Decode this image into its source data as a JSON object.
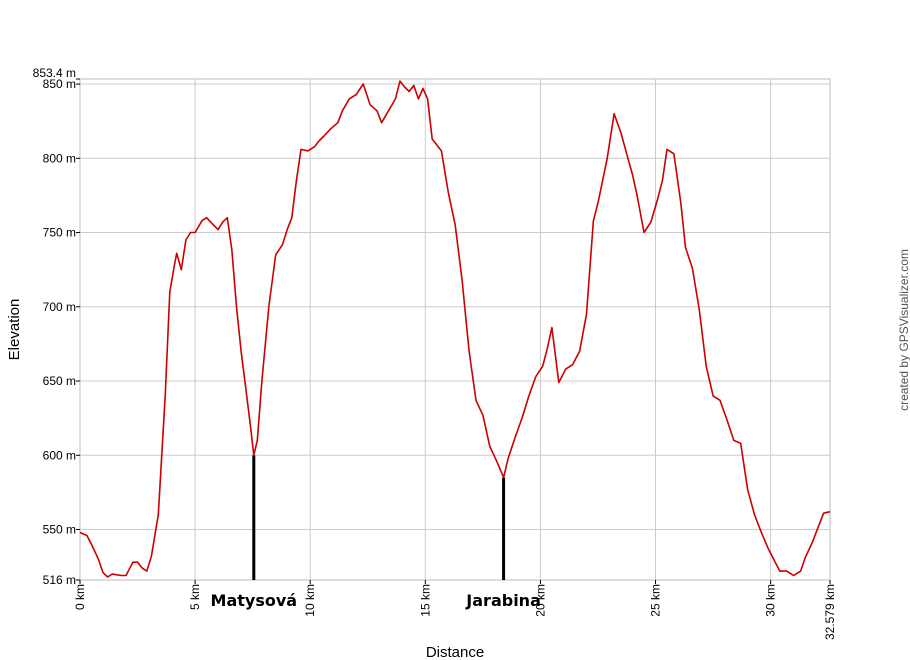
{
  "chart_data": {
    "type": "line",
    "xlabel": "Distance",
    "ylabel": "Elevation",
    "credit": "created by GPSVisualizer.com",
    "xlim": [
      0,
      32.579
    ],
    "ylim": [
      516,
      853.4
    ],
    "grid": true,
    "line_color": "#cc0000",
    "x_ticks": [
      {
        "value": 0,
        "label": "0 km"
      },
      {
        "value": 5,
        "label": "5 km"
      },
      {
        "value": 10,
        "label": "10 km"
      },
      {
        "value": 15,
        "label": "15 km"
      },
      {
        "value": 20,
        "label": "20 km"
      },
      {
        "value": 25,
        "label": "25 km"
      },
      {
        "value": 30,
        "label": "30 km"
      },
      {
        "value": 32.579,
        "label": "32.579 km"
      }
    ],
    "y_ticks": [
      {
        "value": 516,
        "label": "516 m"
      },
      {
        "value": 550,
        "label": "550 m"
      },
      {
        "value": 600,
        "label": "600 m"
      },
      {
        "value": 650,
        "label": "650 m"
      },
      {
        "value": 700,
        "label": "700 m"
      },
      {
        "value": 750,
        "label": "750 m"
      },
      {
        "value": 800,
        "label": "800 m"
      },
      {
        "value": 850,
        "label": "850 m"
      },
      {
        "value": 853.4,
        "label": "853.4 m"
      }
    ],
    "markers": [
      {
        "label": "Matysová",
        "x": 7.55,
        "y": 600
      },
      {
        "label": "Jarabina",
        "x": 18.4,
        "y": 585
      }
    ],
    "series": [
      {
        "x": [
          0,
          0.3,
          0.5,
          0.8,
          1.0,
          1.2,
          1.4,
          1.8,
          2.0,
          2.3,
          2.5,
          2.7,
          2.9,
          3.1,
          3.4,
          3.7,
          3.9,
          4.1,
          4.2,
          4.4,
          4.6,
          4.8,
          5.0,
          5.3,
          5.5,
          5.8,
          6.0,
          6.2,
          6.4,
          6.6,
          6.8,
          7.0,
          7.2,
          7.4,
          7.55,
          7.7,
          7.9,
          8.2,
          8.5,
          8.8,
          9.0,
          9.2,
          9.4,
          9.6,
          9.9,
          10.2,
          10.4,
          10.6,
          10.9,
          11.2,
          11.4,
          11.7,
          12.0,
          12.3,
          12.6,
          12.9,
          13.1,
          13.4,
          13.7,
          13.9,
          14.1,
          14.3,
          14.5,
          14.7,
          14.9,
          15.1,
          15.3,
          15.7,
          16.0,
          16.3,
          16.6,
          16.9,
          17.2,
          17.5,
          17.8,
          18.1,
          18.4,
          18.6,
          18.9,
          19.2,
          19.5,
          19.8,
          20.1,
          20.3,
          20.5,
          20.8,
          21.1,
          21.4,
          21.7,
          22.0,
          22.3,
          22.5,
          22.7,
          22.9,
          23.2,
          23.5,
          23.8,
          24.0,
          24.2,
          24.5,
          24.8,
          25.1,
          25.3,
          25.5,
          25.8,
          26.1,
          26.3,
          26.6,
          26.9,
          27.2,
          27.5,
          27.8,
          28.1,
          28.4,
          28.7,
          29.0,
          29.3,
          29.6,
          29.9,
          30.2,
          30.4,
          30.7,
          31.0,
          31.3,
          31.5,
          31.8,
          32.1,
          32.3,
          32.579
        ],
        "y": [
          548,
          546,
          540,
          530,
          521,
          518,
          520,
          519,
          519,
          528,
          528,
          524,
          522,
          532,
          560,
          640,
          710,
          728,
          736,
          725,
          745,
          750,
          750,
          758,
          760,
          755,
          752,
          757,
          760,
          738,
          700,
          670,
          645,
          620,
          600,
          610,
          650,
          700,
          735,
          742,
          752,
          760,
          785,
          806,
          805,
          808,
          812,
          815,
          820,
          824,
          832,
          840,
          843,
          850,
          836,
          832,
          824,
          832,
          840,
          852,
          848,
          845,
          849,
          840,
          847,
          840,
          813,
          805,
          777,
          755,
          718,
          670,
          637,
          627,
          606,
          596,
          585,
          598,
          612,
          625,
          640,
          653,
          660,
          672,
          686,
          649,
          658,
          661,
          670,
          695,
          758,
          770,
          785,
          800,
          830,
          817,
          800,
          789,
          775,
          750,
          757,
          773,
          785,
          806,
          803,
          770,
          740,
          726,
          698,
          660,
          640,
          637,
          624,
          610,
          608,
          577,
          560,
          548,
          537,
          528,
          522,
          522,
          519,
          522,
          531,
          541,
          553,
          561,
          562
        ]
      }
    ]
  }
}
